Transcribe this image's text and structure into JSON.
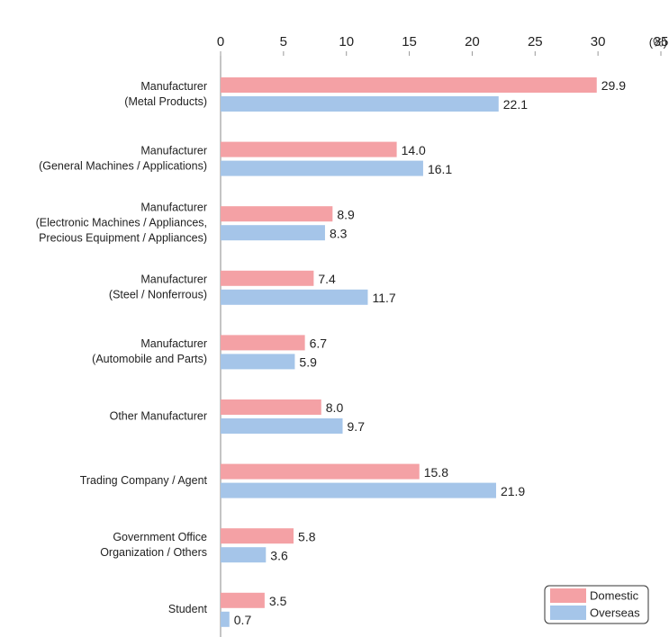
{
  "chart_data": {
    "type": "bar",
    "orientation": "horizontal",
    "unit_label": "(%)",
    "categories": [
      [
        "Manufacturer",
        "(Metal Products)"
      ],
      [
        "Manufacturer",
        "(General Machines / Applications)"
      ],
      [
        "Manufacturer",
        "(Electronic Machines / Appliances,",
        "Precious Equipment / Appliances)"
      ],
      [
        "Manufacturer",
        "(Steel / Nonferrous)"
      ],
      [
        "Manufacturer",
        "(Automobile and Parts)"
      ],
      [
        "Other Manufacturer"
      ],
      [
        "Trading Company / Agent"
      ],
      [
        "Government Office",
        "Organization / Others"
      ],
      [
        "Student"
      ]
    ],
    "series": [
      {
        "name": "Domestic",
        "color": "#f4a1a5",
        "values": [
          29.9,
          14.0,
          8.9,
          7.4,
          6.7,
          8.0,
          15.8,
          5.8,
          3.5
        ],
        "value_labels": [
          "29.9",
          "14.0",
          "8.9",
          "7.4",
          "6.7",
          "8.0",
          "15.8",
          "5.8",
          "3.5"
        ]
      },
      {
        "name": "Overseas",
        "color": "#a5c5e9",
        "values": [
          22.1,
          16.1,
          8.3,
          11.7,
          5.9,
          9.7,
          21.9,
          3.6,
          0.7
        ],
        "value_labels": [
          "22.1",
          "16.1",
          "8.3",
          "11.7",
          "5.9",
          "9.7",
          "21.9",
          "3.6",
          "0.7"
        ]
      }
    ],
    "xlim": [
      0,
      35
    ],
    "xticks": [
      0,
      5,
      10,
      15,
      20,
      25,
      30,
      35
    ],
    "grid": false,
    "legend": "lower right"
  }
}
